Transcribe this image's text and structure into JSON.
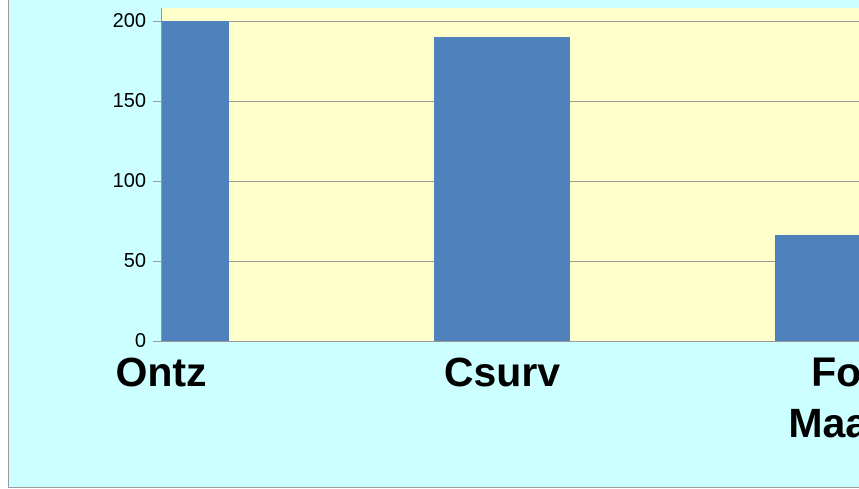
{
  "chart_data": {
    "type": "bar",
    "categories": [
      "Ontz",
      "Csurv",
      "Fot Maatr"
    ],
    "values": [
      200,
      190,
      66
    ],
    "color": "#4f81bd",
    "ylim": [
      0,
      208
    ],
    "yticks": [
      0,
      50,
      100,
      150,
      200
    ],
    "grid": true
  }
}
